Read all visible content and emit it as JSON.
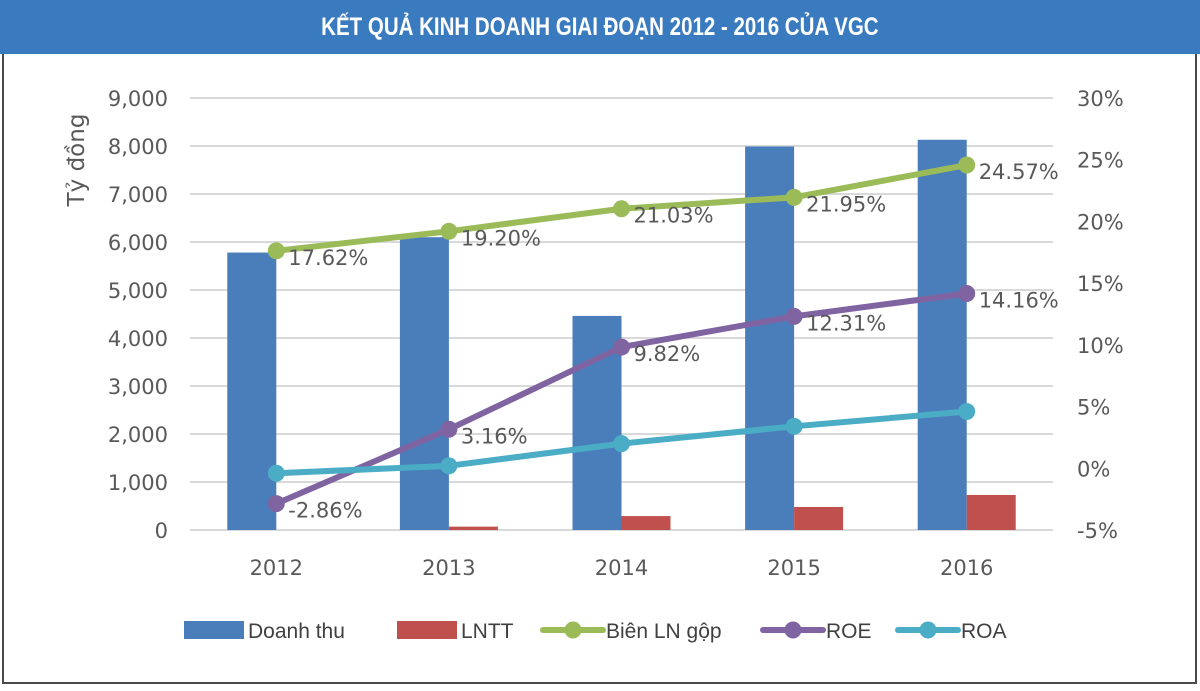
{
  "title": "KẾT QUẢ KINH DOANH GIAI ĐOẠN 2012 - 2016 CỦA VGC",
  "colors": {
    "title_bar": "#3a7bc0",
    "doanh_thu": "#4a7ebb",
    "lntt": "#c0504d",
    "bien_ln_gop": "#9bbb59",
    "roe": "#8064a2",
    "roa": "#4bacc6",
    "grid": "#d9d9d9",
    "text": "#595959"
  },
  "chart_data": {
    "type": "bar",
    "title": "KẾT QUẢ KINH DOANH GIAI ĐOẠN 2012 - 2016 CỦA VGC",
    "xlabel": "",
    "ylabel": "Tỷ đồng",
    "categories": [
      "2012",
      "2013",
      "2014",
      "2015",
      "2016"
    ],
    "y_left": {
      "range": [
        0,
        9000
      ],
      "ticks": [
        0,
        1000,
        2000,
        3000,
        4000,
        5000,
        6000,
        7000,
        8000,
        9000
      ],
      "tick_labels": [
        "0",
        "1,000",
        "2,000",
        "3,000",
        "4,000",
        "5,000",
        "6,000",
        "7,000",
        "8,000",
        "9,000"
      ]
    },
    "y_right": {
      "range": [
        -5,
        30
      ],
      "ticks": [
        -5,
        0,
        5,
        10,
        15,
        20,
        25,
        30
      ],
      "tick_labels": [
        "-5%",
        "0%",
        "5%",
        "10%",
        "15%",
        "20%",
        "25%",
        "30%"
      ]
    },
    "grid": true,
    "legend_position": "bottom",
    "series": [
      {
        "name": "Doanh thu",
        "type": "bar",
        "axis": "left",
        "values": [
          5780,
          6100,
          4460,
          7990,
          8130
        ],
        "labels": null
      },
      {
        "name": "LNTT",
        "type": "bar",
        "axis": "left",
        "values": [
          0,
          70,
          290,
          480,
          730
        ],
        "labels": null
      },
      {
        "name": "Biên LN gộp",
        "type": "line",
        "axis": "right",
        "values": [
          17.62,
          19.2,
          21.03,
          21.95,
          24.57
        ],
        "labels": [
          "17.62%",
          "19.20%",
          "21.03%",
          "21.95%",
          "24.57%"
        ]
      },
      {
        "name": "ROE",
        "type": "line",
        "axis": "right",
        "values": [
          -2.86,
          3.16,
          9.82,
          12.31,
          14.16
        ],
        "labels": [
          "-2.86%",
          "3.16%",
          "9.82%",
          "12.31%",
          "14.16%"
        ]
      },
      {
        "name": "ROA",
        "type": "line",
        "axis": "right",
        "values": [
          -0.4,
          0.2,
          2.0,
          3.4,
          4.6
        ],
        "labels": null
      }
    ]
  }
}
